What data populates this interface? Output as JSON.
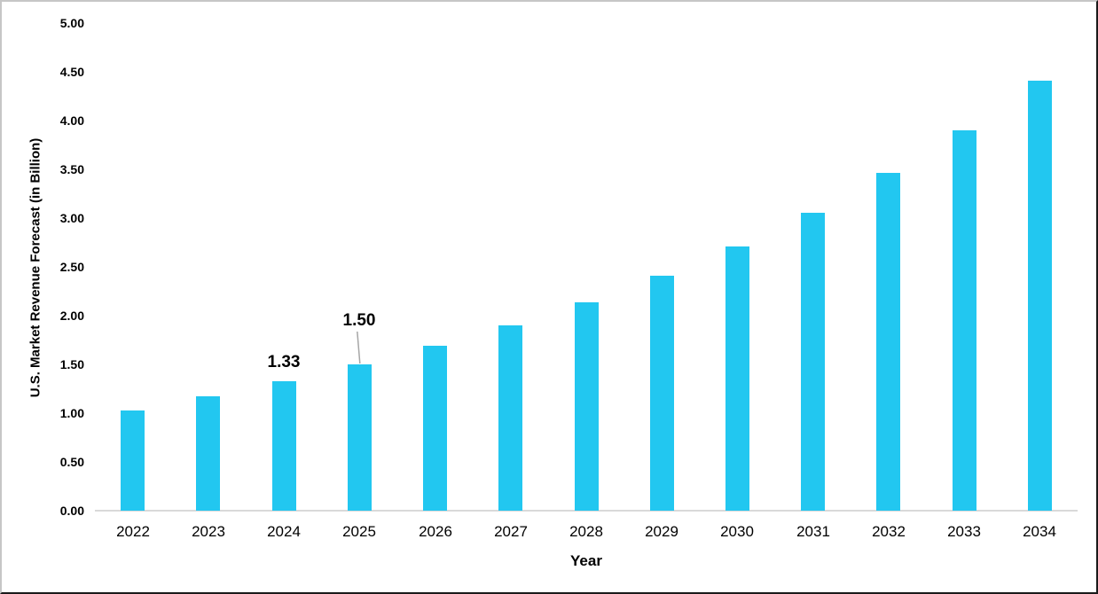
{
  "chart_data": {
    "type": "bar",
    "title": "",
    "xlabel": "Year",
    "ylabel": "U.S. Market Revenue Forecast (in Billion)",
    "categories": [
      "2022",
      "2023",
      "2024",
      "2025",
      "2026",
      "2027",
      "2028",
      "2029",
      "2030",
      "2031",
      "2032",
      "2033",
      "2034"
    ],
    "values": [
      1.03,
      1.17,
      1.33,
      1.5,
      1.69,
      1.9,
      2.14,
      2.41,
      2.71,
      3.05,
      3.46,
      3.9,
      4.41
    ],
    "ylim": [
      0.0,
      5.0
    ],
    "ytick_step": 0.5,
    "yticks": [
      "0.00",
      "0.50",
      "1.00",
      "1.50",
      "2.00",
      "2.50",
      "3.00",
      "3.50",
      "4.00",
      "4.50",
      "5.00"
    ],
    "grid": false,
    "legend": false,
    "data_labels": [
      {
        "category": "2024",
        "text": "1.33",
        "leader_line": false
      },
      {
        "category": "2025",
        "text": "1.50",
        "leader_line": true
      }
    ],
    "colors": {
      "bar": "#22C7F0",
      "axis_line": "#D9D9D9",
      "leader_line": "#A6A6A6",
      "text": "#000000",
      "frame_light": "#C6C6C6",
      "frame_dark": "#1A1A1A"
    }
  }
}
